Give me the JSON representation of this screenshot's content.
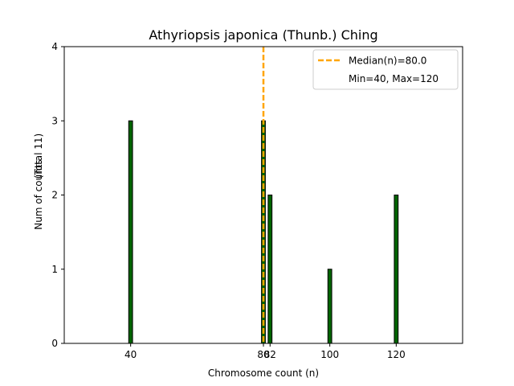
{
  "chart_data": {
    "type": "bar",
    "title": "Athyriopsis japonica (Thunb.) Ching",
    "xlabel": "Chromosome count (n)",
    "ylabel": "Num of counts",
    "ylabel_total": "(Total 11)",
    "xlim": [
      20,
      140
    ],
    "ylim": [
      0,
      4
    ],
    "xticks": [
      40,
      80,
      82,
      100,
      120
    ],
    "yticks": [
      0,
      1,
      2,
      3,
      4
    ],
    "x": [
      40,
      80,
      82,
      100,
      120
    ],
    "values": [
      3,
      3,
      2,
      1,
      2
    ],
    "bar_color": "#006400",
    "bar_edge_color": "#000000",
    "median": {
      "value": 80.0,
      "label": "Median(n)=80.0",
      "color": "#FFA500"
    },
    "range_label": "Min=40, Max=120",
    "legend_position": "upper right",
    "grid": false
  }
}
